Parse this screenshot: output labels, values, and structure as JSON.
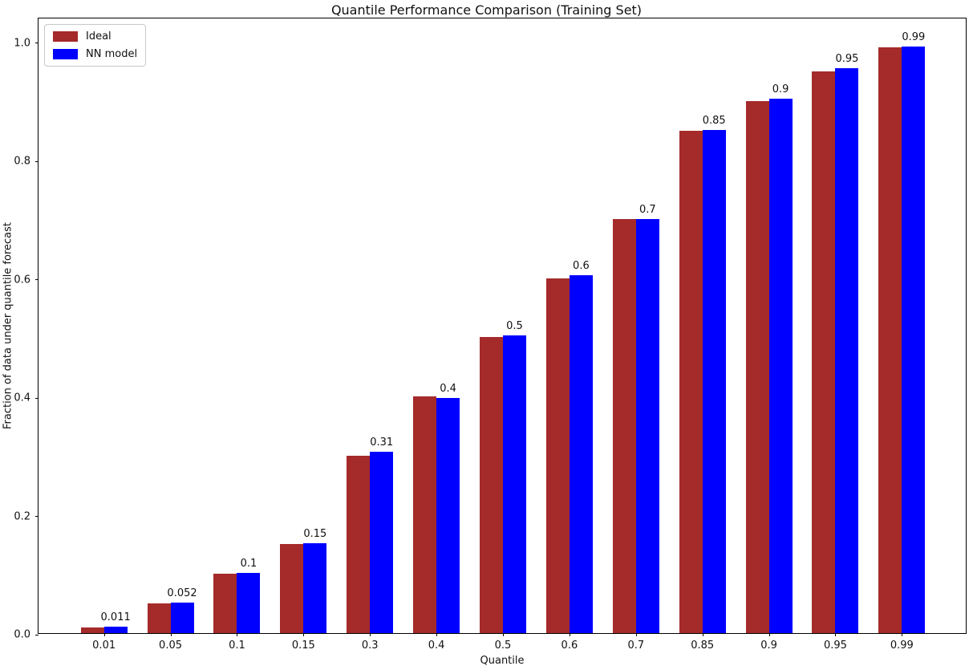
{
  "chart_data": {
    "type": "bar",
    "title": "Quantile Performance Comparison (Training Set)",
    "xlabel": "Quantile",
    "ylabel": "Fraction of data under quantile forecast",
    "categories": [
      "0.01",
      "0.05",
      "0.1",
      "0.15",
      "0.3",
      "0.4",
      "0.5",
      "0.6",
      "0.7",
      "0.85",
      "0.9",
      "0.95",
      "0.99"
    ],
    "series": [
      {
        "name": "Ideal",
        "color": "#A52A2A",
        "values": [
          0.01,
          0.05,
          0.1,
          0.15,
          0.3,
          0.4,
          0.5,
          0.6,
          0.7,
          0.85,
          0.9,
          0.95,
          0.99
        ]
      },
      {
        "name": "NN model",
        "color": "#0000FF",
        "values": [
          0.011,
          0.052,
          0.102,
          0.152,
          0.306,
          0.398,
          0.503,
          0.605,
          0.7,
          0.851,
          0.903,
          0.955,
          0.992
        ],
        "bar_labels": [
          "0.011",
          "0.052",
          "0.1",
          "0.15",
          "0.31",
          "0.4",
          "0.5",
          "0.6",
          "0.7",
          "0.85",
          "0.9",
          "0.95",
          "0.99"
        ]
      }
    ],
    "yticks": [
      "0.0",
      "0.2",
      "0.4",
      "0.6",
      "0.8",
      "1.0"
    ],
    "ylim": [
      0,
      1.042
    ],
    "grid": false,
    "legend_position": "upper-left"
  }
}
